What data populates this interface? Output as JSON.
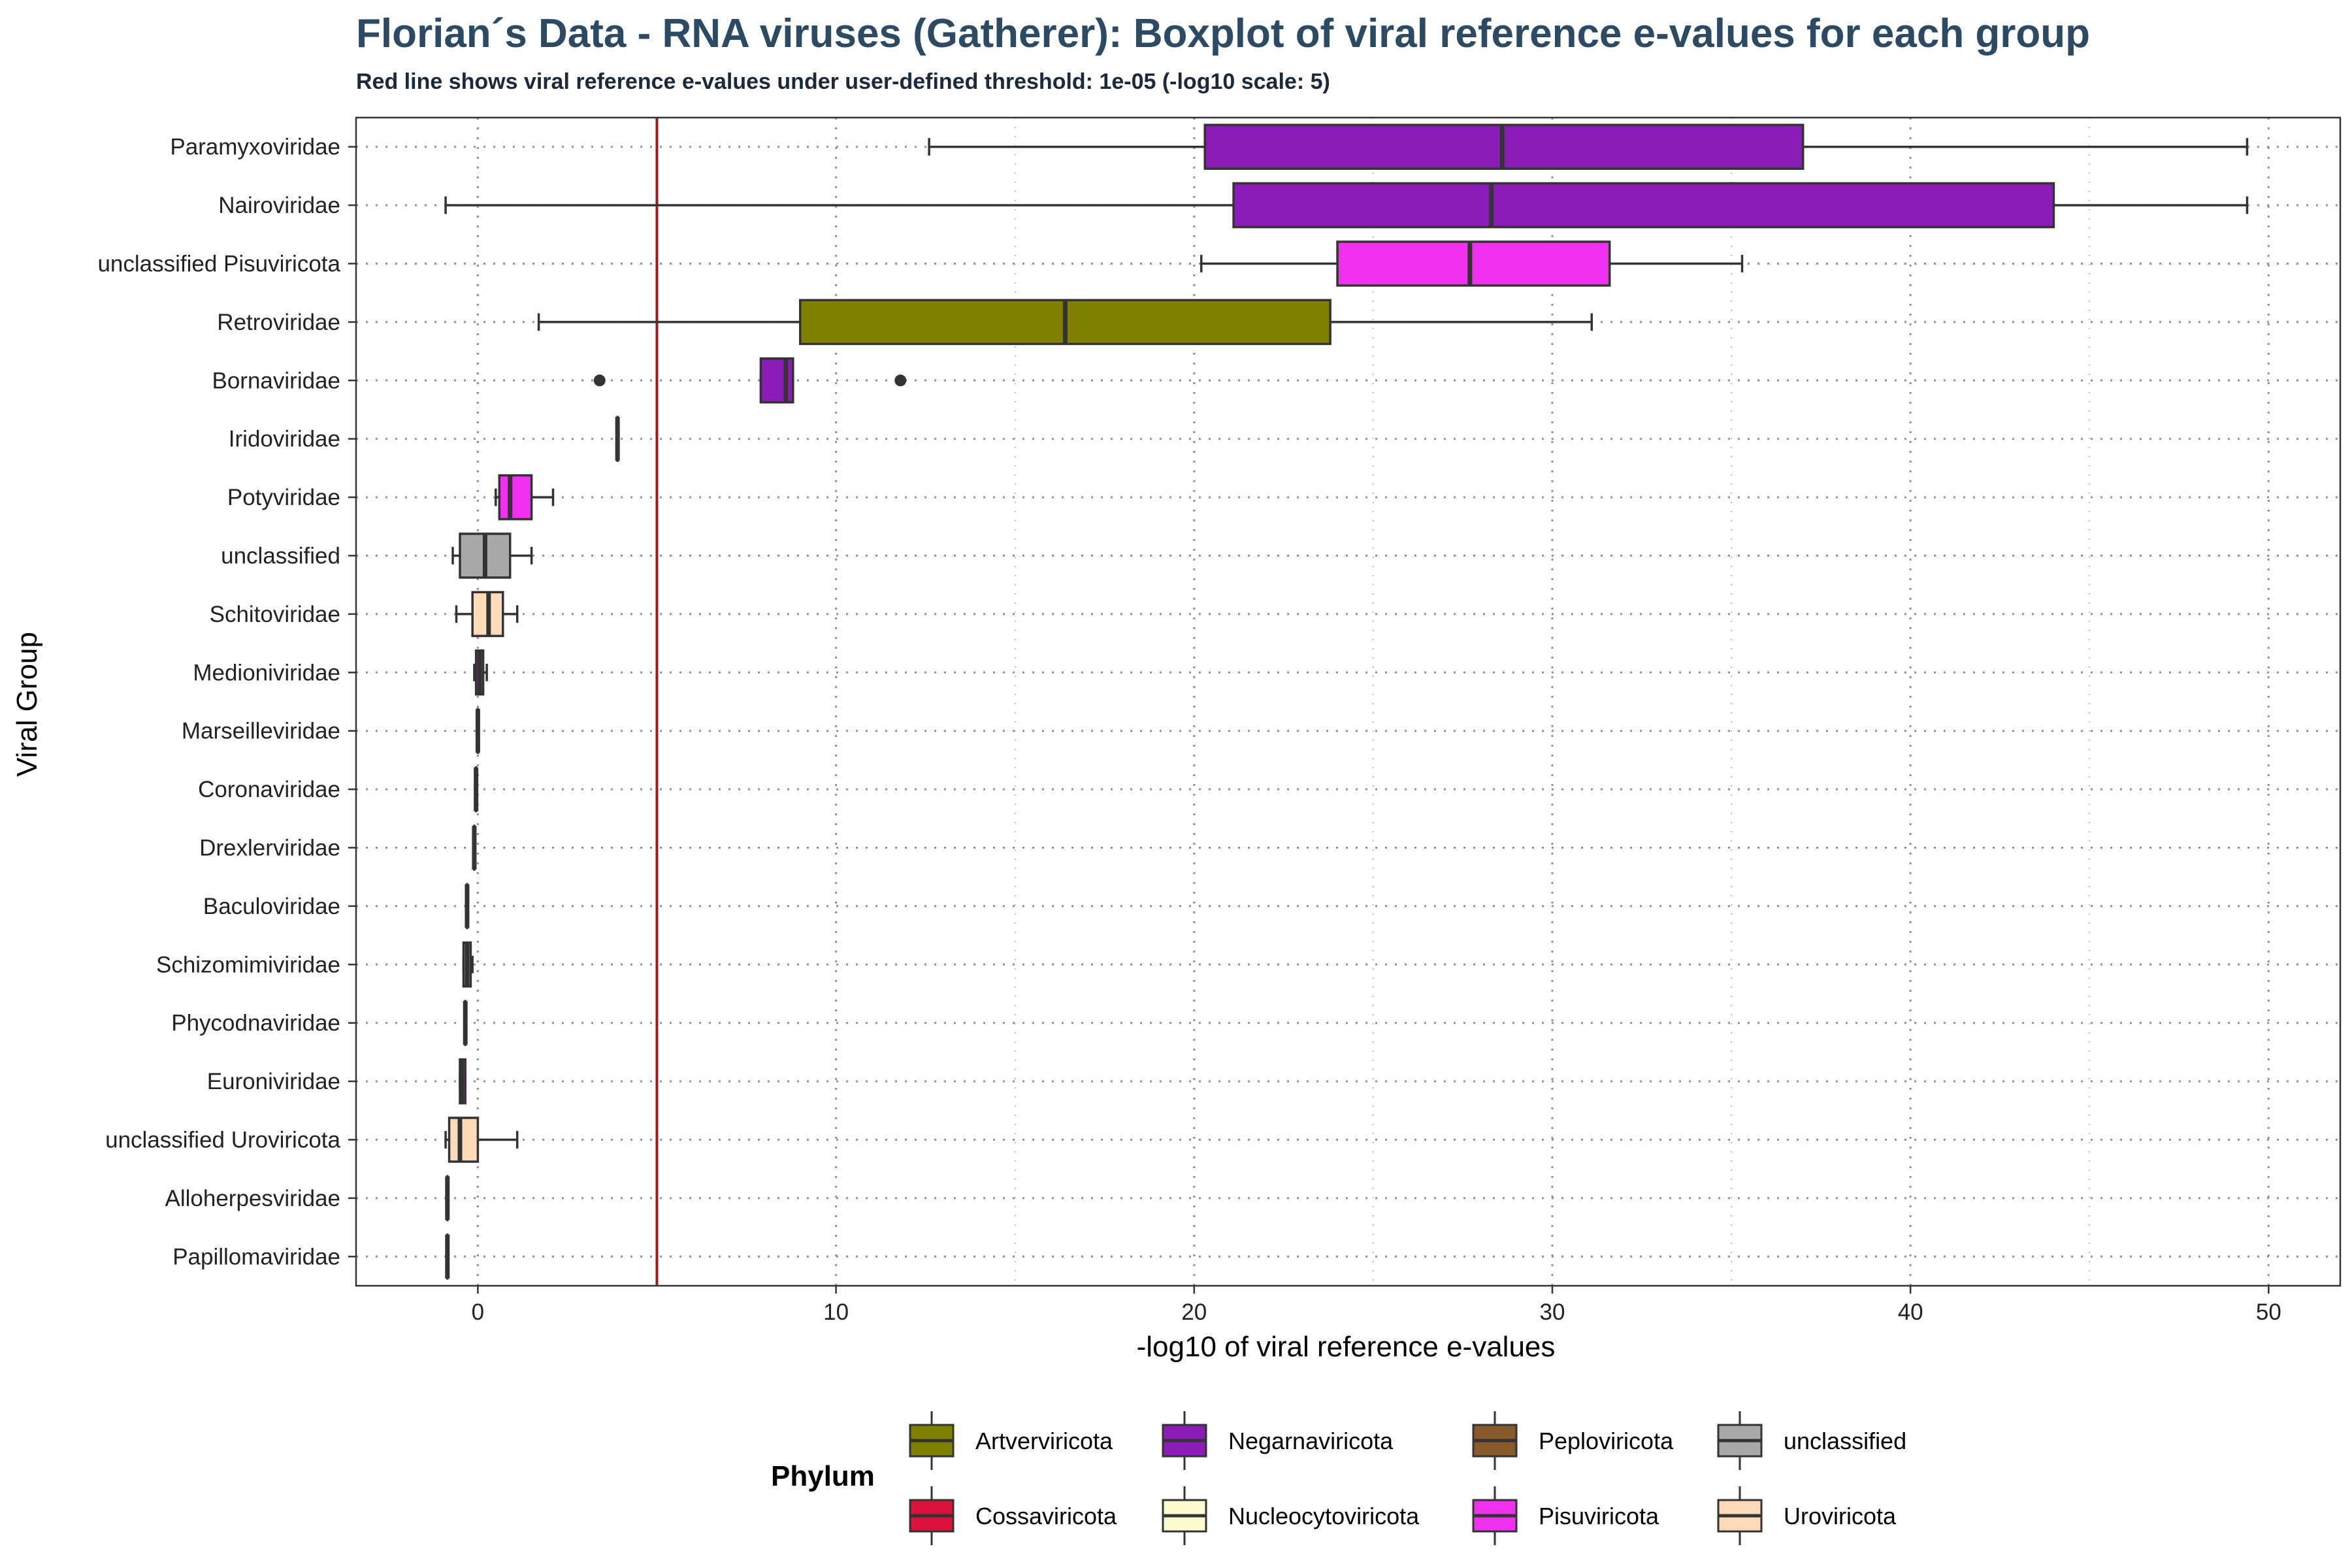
{
  "colors": {
    "threshold_line": "#a01818",
    "box_stroke": "#333333",
    "grid": "#8c8c8c",
    "panel_border": "#333333"
  },
  "chart_data": {
    "type": "boxplot",
    "orientation": "horizontal",
    "title": "Florian´s Data - RNA viruses (Gatherer): Boxplot of viral reference e-values for each group",
    "subtitle": "Red line shows viral reference e-values under user-defined threshold: 1e-05 (-log10 scale: 5)",
    "xlabel": "-log10 of viral reference e-values",
    "ylabel": "Viral Group",
    "xlim": [
      -3.4,
      52.0
    ],
    "x_ticks": [
      0,
      10,
      20,
      30,
      40,
      50
    ],
    "grid": "dotted",
    "threshold": 5,
    "legend": {
      "title": "Phylum",
      "position": "bottom",
      "items": [
        {
          "label": "Artverviricota",
          "color": "#808000"
        },
        {
          "label": "Cossaviricota",
          "color": "#dc143c"
        },
        {
          "label": "Negarnaviricota",
          "color": "#8b1cb8"
        },
        {
          "label": "Nucleocytoviricota",
          "color": "#fffdd0"
        },
        {
          "label": "Peploviricota",
          "color": "#8b5a2b"
        },
        {
          "label": "Pisuviricota",
          "color": "#ef30ef"
        },
        {
          "label": "unclassified",
          "color": "#a9a9a9"
        },
        {
          "label": "Uroviricota",
          "color": "#ffdab9"
        }
      ]
    },
    "groups": [
      {
        "name": "Paramyxoviridae",
        "phylum": "Negarnaviricota",
        "min": 12.6,
        "q1": 20.3,
        "median": 28.6,
        "q3": 37.0,
        "max": 49.4,
        "outliers": []
      },
      {
        "name": "Nairoviridae",
        "phylum": "Negarnaviricota",
        "min": -0.9,
        "q1": 21.1,
        "median": 28.3,
        "q3": 44.0,
        "max": 49.4,
        "outliers": []
      },
      {
        "name": "unclassified Pisuviricota",
        "phylum": "Pisuviricota",
        "min": 20.2,
        "q1": 24.0,
        "median": 27.7,
        "q3": 31.6,
        "max": 35.3,
        "outliers": []
      },
      {
        "name": "Retroviridae",
        "phylum": "Artverviricota",
        "min": 1.7,
        "q1": 9.0,
        "median": 16.4,
        "q3": 23.8,
        "max": 31.1,
        "outliers": []
      },
      {
        "name": "Bornaviridae",
        "phylum": "Negarnaviricota",
        "min": 7.9,
        "q1": 7.9,
        "median": 8.6,
        "q3": 8.8,
        "max": 8.8,
        "outliers": [
          3.4,
          11.8
        ]
      },
      {
        "name": "Iridoviridae",
        "phylum": "Nucleocytoviricota",
        "min": 3.9,
        "q1": 3.9,
        "median": 3.9,
        "q3": 3.9,
        "max": 3.9,
        "outliers": []
      },
      {
        "name": "Potyviridae",
        "phylum": "Pisuviricota",
        "min": 0.5,
        "q1": 0.6,
        "median": 0.9,
        "q3": 1.5,
        "max": 2.1,
        "outliers": []
      },
      {
        "name": "unclassified",
        "phylum": "unclassified",
        "min": -0.7,
        "q1": -0.5,
        "median": 0.2,
        "q3": 0.9,
        "max": 1.5,
        "outliers": []
      },
      {
        "name": "Schitoviridae",
        "phylum": "Uroviricota",
        "min": -0.6,
        "q1": -0.15,
        "median": 0.3,
        "q3": 0.7,
        "max": 1.1,
        "outliers": []
      },
      {
        "name": "Medioniviridae",
        "phylum": "Pisuviricota",
        "min": -0.1,
        "q1": -0.05,
        "median": 0.05,
        "q3": 0.15,
        "max": 0.25,
        "outliers": []
      },
      {
        "name": "Marseilleviridae",
        "phylum": "Nucleocytoviricota",
        "min": 0.0,
        "q1": 0.0,
        "median": 0.0,
        "q3": 0.0,
        "max": 0.0,
        "outliers": []
      },
      {
        "name": "Coronaviridae",
        "phylum": "Pisuviricota",
        "min": -0.05,
        "q1": -0.05,
        "median": -0.05,
        "q3": -0.05,
        "max": -0.05,
        "outliers": []
      },
      {
        "name": "Drexlerviridae",
        "phylum": "Uroviricota",
        "min": -0.1,
        "q1": -0.1,
        "median": -0.1,
        "q3": -0.1,
        "max": -0.1,
        "outliers": []
      },
      {
        "name": "Baculoviridae",
        "phylum": "Nucleocytoviricota",
        "min": -0.3,
        "q1": -0.3,
        "median": -0.3,
        "q3": -0.3,
        "max": -0.3,
        "outliers": []
      },
      {
        "name": "Schizomimiviridae",
        "phylum": "Nucleocytoviricota",
        "min": -0.4,
        "q1": -0.4,
        "median": -0.3,
        "q3": -0.2,
        "max": -0.15,
        "outliers": []
      },
      {
        "name": "Phycodnaviridae",
        "phylum": "Nucleocytoviricota",
        "min": -0.35,
        "q1": -0.35,
        "median": -0.35,
        "q3": -0.35,
        "max": -0.35,
        "outliers": []
      },
      {
        "name": "Euroniviridae",
        "phylum": "Pisuviricota",
        "min": -0.5,
        "q1": -0.5,
        "median": -0.45,
        "q3": -0.35,
        "max": -0.35,
        "outliers": []
      },
      {
        "name": "unclassified Uroviricota",
        "phylum": "Uroviricota",
        "min": -0.9,
        "q1": -0.8,
        "median": -0.5,
        "q3": 0.0,
        "max": 1.1,
        "outliers": []
      },
      {
        "name": "Alloherpesviridae",
        "phylum": "Peploviricota",
        "min": -0.85,
        "q1": -0.85,
        "median": -0.85,
        "q3": -0.85,
        "max": -0.85,
        "outliers": []
      },
      {
        "name": "Papillomaviridae",
        "phylum": "Cossaviricota",
        "min": -0.85,
        "q1": -0.85,
        "median": -0.85,
        "q3": -0.85,
        "max": -0.85,
        "outliers": []
      }
    ]
  }
}
